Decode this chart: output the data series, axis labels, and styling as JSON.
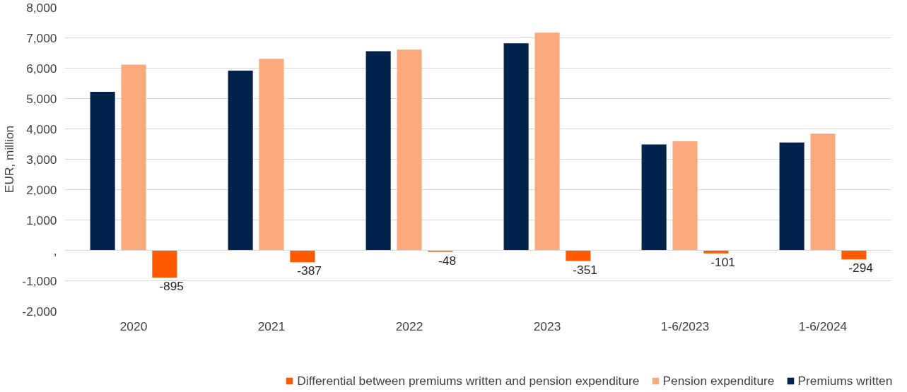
{
  "chart_data": {
    "type": "bar",
    "ylabel": "EUR, million",
    "categories": [
      "2020",
      "2021",
      "2022",
      "2023",
      "1-6/2023",
      "1-6/2024"
    ],
    "series": [
      {
        "name": "Premiums written",
        "color": "#00224b",
        "values": [
          5220,
          5920,
          6560,
          6820,
          3490,
          3550
        ]
      },
      {
        "name": "Pension expenditure",
        "color": "#fbaa7e",
        "values": [
          6115,
          6307,
          6608,
          7171,
          3591,
          3844
        ]
      },
      {
        "name": "Differential between premiums written and pension expenditure",
        "color": "#ff5a00",
        "values": [
          -895,
          -387,
          -48,
          -351,
          -101,
          -294
        ],
        "value_labels": [
          "-895",
          "-387",
          "-48",
          "-351",
          "-101",
          "-294"
        ]
      }
    ],
    "ylim": [
      -2000,
      8000
    ],
    "yticks": [
      {
        "value": -2000,
        "label": "-2,000"
      },
      {
        "value": -1000,
        "label": "-1,000"
      },
      {
        "value": 0,
        "label": ","
      },
      {
        "value": 1000,
        "label": "1,000"
      },
      {
        "value": 2000,
        "label": "2,000"
      },
      {
        "value": 3000,
        "label": "3,000"
      },
      {
        "value": 4000,
        "label": "4,000"
      },
      {
        "value": 5000,
        "label": "5,000"
      },
      {
        "value": 6000,
        "label": "6,000"
      },
      {
        "value": 7000,
        "label": "7,000"
      },
      {
        "value": 8000,
        "label": "8,000"
      }
    ],
    "grid": "y",
    "legend": "bottom"
  }
}
